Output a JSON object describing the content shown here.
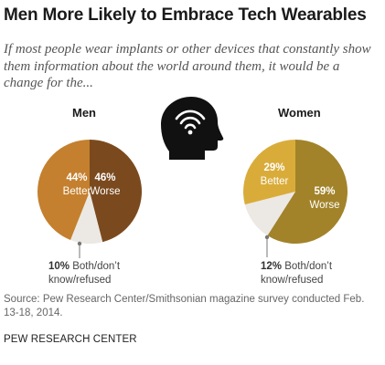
{
  "title": "Men More Likely to Embrace Tech Wearables",
  "subtitle": "If most people wear implants or other devices that constantly show them information about the world around them, it would be a change for the...",
  "chart_data": [
    {
      "type": "pie",
      "title": "Men",
      "slices": [
        {
          "label": "Worse",
          "value": 46,
          "color": "#7a4a1e"
        },
        {
          "label": "Both/don’t know/refused",
          "value": 10,
          "color": "#ece9e4"
        },
        {
          "label": "Better",
          "value": 44,
          "color": "#c4802e"
        }
      ]
    },
    {
      "type": "pie",
      "title": "Women",
      "slices": [
        {
          "label": "Worse",
          "value": 59,
          "color": "#a2832a"
        },
        {
          "label": "Both/don’t know/refused",
          "value": 12,
          "color": "#ece9e4"
        },
        {
          "label": "Better",
          "value": 29,
          "color": "#d9ac3a"
        }
      ]
    }
  ],
  "labels": {
    "men_better_pct": "44%",
    "men_better": "Better",
    "men_worse_pct": "46%",
    "men_worse": "Worse",
    "men_other_pct": "10%",
    "men_other_1": "Both/don’t",
    "men_other_2": "know/refused",
    "women_better_pct": "29%",
    "women_better": "Better",
    "women_worse_pct": "59%",
    "women_worse": "Worse",
    "women_other_pct": "12%",
    "women_other_1": "Both/don’t",
    "women_other_2": "know/refused"
  },
  "icon": "head-wifi-icon",
  "source": "Source: Pew Research Center/Smithsonian magazine survey conducted Feb. 13-18, 2014.",
  "org": "PEW RESEARCH CENTER"
}
